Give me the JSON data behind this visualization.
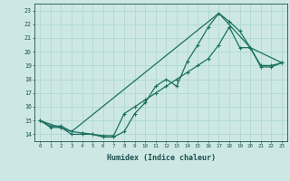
{
  "xlabel": "Humidex (Indice chaleur)",
  "bg_color": "#cde8e4",
  "grid_color": "#b0d8d2",
  "line_color": "#1a7060",
  "xlim": [
    -0.5,
    23.5
  ],
  "ylim": [
    13.5,
    23.5
  ],
  "xticks": [
    0,
    1,
    2,
    3,
    4,
    5,
    6,
    7,
    8,
    9,
    10,
    11,
    12,
    13,
    14,
    15,
    16,
    17,
    18,
    19,
    20,
    21,
    22,
    23
  ],
  "yticks": [
    14,
    15,
    16,
    17,
    18,
    19,
    20,
    21,
    22,
    23
  ],
  "line1_x": [
    0,
    1,
    2,
    3,
    4,
    5,
    6,
    7,
    8,
    9,
    10,
    11,
    12,
    13,
    14,
    15,
    16,
    17,
    18,
    19,
    20,
    21,
    22,
    23
  ],
  "line1_y": [
    15.0,
    14.5,
    14.5,
    14.0,
    14.0,
    14.0,
    13.8,
    13.8,
    14.2,
    15.5,
    16.3,
    17.5,
    18.0,
    17.5,
    19.3,
    20.5,
    21.8,
    22.8,
    22.2,
    21.5,
    20.3,
    18.9,
    18.9,
    19.2
  ],
  "line2_x": [
    0,
    1,
    2,
    3,
    4,
    5,
    6,
    7,
    8,
    9,
    10,
    11,
    12,
    13,
    14,
    15,
    16,
    17,
    18,
    19,
    20,
    21,
    22,
    23
  ],
  "line2_y": [
    15.0,
    14.6,
    14.6,
    14.2,
    14.1,
    14.0,
    13.9,
    13.9,
    15.5,
    16.0,
    16.5,
    17.0,
    17.5,
    18.0,
    18.5,
    19.0,
    19.5,
    20.5,
    21.8,
    20.3,
    20.3,
    19.0,
    19.0,
    19.2
  ],
  "line3_x": [
    0,
    3,
    17,
    20,
    23
  ],
  "line3_y": [
    15.0,
    14.2,
    22.8,
    20.3,
    19.2
  ]
}
